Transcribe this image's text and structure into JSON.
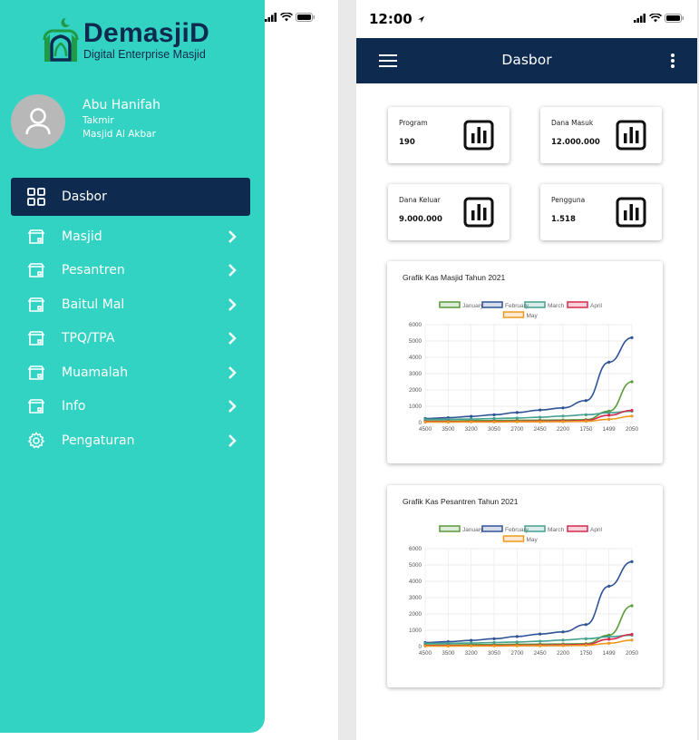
{
  "drawer": {
    "brand_name": "DemasjiD",
    "brand_tagline": "Digital Enterprise Masjid",
    "profile": {
      "name": "Abu Hanifah",
      "role": "Takmir",
      "org": "Masjid Al Akbar"
    },
    "menu": [
      {
        "label": "Dasbor",
        "icon": "dashboard-icon",
        "active": true
      },
      {
        "label": "Masjid",
        "icon": "building-icon",
        "chevron": true
      },
      {
        "label": "Pesantren",
        "icon": "building-icon",
        "chevron": true
      },
      {
        "label": "Baitul Mal",
        "icon": "building-icon",
        "chevron": true
      },
      {
        "label": "TPQ/TPA",
        "icon": "building-icon",
        "chevron": true
      },
      {
        "label": "Muamalah",
        "icon": "building-icon",
        "chevron": true
      },
      {
        "label": "Info",
        "icon": "building-icon",
        "chevron": true
      },
      {
        "label": "Pengaturan",
        "icon": "gear-icon",
        "chevron": true
      }
    ]
  },
  "status_bar": {
    "time": "12:00"
  },
  "app_bar": {
    "title": "Dasbor"
  },
  "stats": [
    {
      "label": "Program",
      "value": "190",
      "icon": "bar-chart-icon"
    },
    {
      "label": "Dana Masuk",
      "value": "12.000.000",
      "icon": "bar-chart-icon"
    },
    {
      "label": "Dana Keluar",
      "value": "9.000.000",
      "icon": "bar-chart-icon"
    },
    {
      "label": "Pengguna",
      "value": "1.518",
      "icon": "bar-chart-icon"
    }
  ],
  "colors": {
    "teal": "#33d3c3",
    "navy": "#0e2a4f"
  },
  "chart_data": [
    {
      "type": "line",
      "title": "Grafik Kas Masjid Tahun 2021",
      "categories": [
        "4500",
        "3500",
        "3200",
        "3050",
        "2700",
        "2450",
        "2200",
        "1750",
        "1499",
        "2050"
      ],
      "ylim": [
        0,
        6000
      ],
      "yticks": [
        0,
        1000,
        2000,
        3000,
        4000,
        5000,
        6000
      ],
      "grid": true,
      "legend": "top",
      "series": [
        {
          "name": "January",
          "color": "#5a9a3a",
          "values": [
            100,
            100,
            120,
            130,
            140,
            150,
            160,
            180,
            700,
            2500
          ]
        },
        {
          "name": "February",
          "color": "#2e5296",
          "values": [
            250,
            300,
            380,
            480,
            620,
            770,
            900,
            1350,
            3700,
            5200
          ]
        },
        {
          "name": "March",
          "color": "#46a08f",
          "values": [
            200,
            200,
            220,
            250,
            280,
            330,
            400,
            480,
            600,
            700
          ]
        },
        {
          "name": "April",
          "color": "#d72a4d",
          "values": [
            60,
            60,
            60,
            70,
            80,
            90,
            100,
            130,
            450,
            750
          ]
        },
        {
          "name": "May",
          "color": "#f0981e",
          "values": [
            30,
            30,
            40,
            40,
            50,
            50,
            60,
            80,
            200,
            400
          ]
        }
      ]
    },
    {
      "type": "line",
      "title": "Grafik Kas Pesantren Tahun 2021",
      "categories": [
        "4500",
        "3500",
        "3200",
        "3050",
        "2700",
        "2450",
        "2200",
        "1750",
        "1499",
        "2050"
      ],
      "ylim": [
        0,
        6000
      ],
      "yticks": [
        0,
        1000,
        2000,
        3000,
        4000,
        5000,
        6000
      ],
      "grid": true,
      "legend": "top",
      "series": [
        {
          "name": "January",
          "color": "#5a9a3a",
          "values": [
            100,
            100,
            120,
            130,
            140,
            150,
            160,
            180,
            700,
            2500
          ]
        },
        {
          "name": "February",
          "color": "#2e5296",
          "values": [
            250,
            300,
            380,
            480,
            620,
            770,
            900,
            1350,
            3700,
            5200
          ]
        },
        {
          "name": "March",
          "color": "#46a08f",
          "values": [
            200,
            200,
            220,
            250,
            280,
            330,
            400,
            480,
            600,
            700
          ]
        },
        {
          "name": "April",
          "color": "#d72a4d",
          "values": [
            60,
            60,
            60,
            70,
            80,
            90,
            100,
            130,
            450,
            750
          ]
        },
        {
          "name": "May",
          "color": "#f0981e",
          "values": [
            30,
            30,
            40,
            40,
            50,
            50,
            60,
            80,
            200,
            400
          ]
        }
      ]
    }
  ]
}
